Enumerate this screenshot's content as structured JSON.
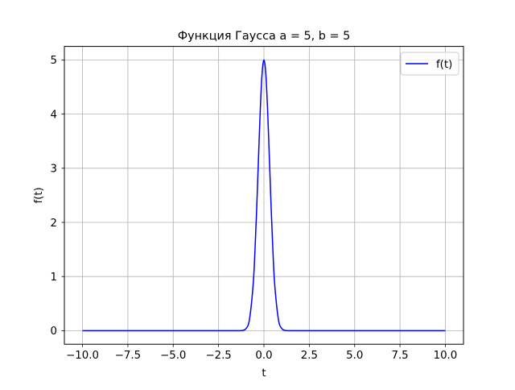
{
  "chart_data": {
    "type": "line",
    "title": "Функция Гаусса a = 5, b = 5",
    "xlabel": "t",
    "ylabel": "f(t)",
    "xlim": [
      -11.0,
      11.0
    ],
    "ylim": [
      -0.25,
      5.25
    ],
    "x_ticks": [
      -10.0,
      -7.5,
      -5.0,
      -2.5,
      0.0,
      2.5,
      5.0,
      7.5,
      10.0
    ],
    "x_tick_labels": [
      "−10.0",
      "−7.5",
      "−5.0",
      "−2.5",
      "0.0",
      "2.5",
      "5.0",
      "7.5",
      "10.0"
    ],
    "y_ticks": [
      0,
      1,
      2,
      3,
      4,
      5
    ],
    "y_tick_labels": [
      "0",
      "1",
      "2",
      "3",
      "4",
      "5"
    ],
    "grid": true,
    "legend": {
      "position": "top-right",
      "entries": [
        "f(t)"
      ]
    },
    "series": [
      {
        "name": "f(t)",
        "color": "#0000ff",
        "x": [
          -10.0,
          -8.0,
          -6.0,
          -4.0,
          -2.0,
          -1.5,
          -1.25,
          -1.0,
          -0.8,
          -0.6,
          -0.5,
          -0.4,
          -0.3,
          -0.2,
          -0.1,
          0.0,
          0.1,
          0.2,
          0.3,
          0.4,
          0.5,
          0.6,
          0.8,
          1.0,
          1.25,
          1.5,
          2.0,
          4.0,
          6.0,
          8.0,
          10.0
        ],
        "y": [
          0.0,
          0.0,
          0.0,
          0.0,
          0.0,
          0.0,
          0.002,
          0.034,
          0.204,
          0.826,
          1.433,
          2.247,
          3.188,
          4.094,
          4.756,
          5.0,
          4.756,
          4.094,
          3.188,
          2.247,
          1.433,
          0.826,
          0.204,
          0.034,
          0.002,
          0.0,
          0.0,
          0.0,
          0.0,
          0.0,
          0.0
        ]
      }
    ]
  },
  "colors": {
    "line": "#0000ff",
    "grid": "#b0b0b0",
    "axes": "#000000"
  }
}
